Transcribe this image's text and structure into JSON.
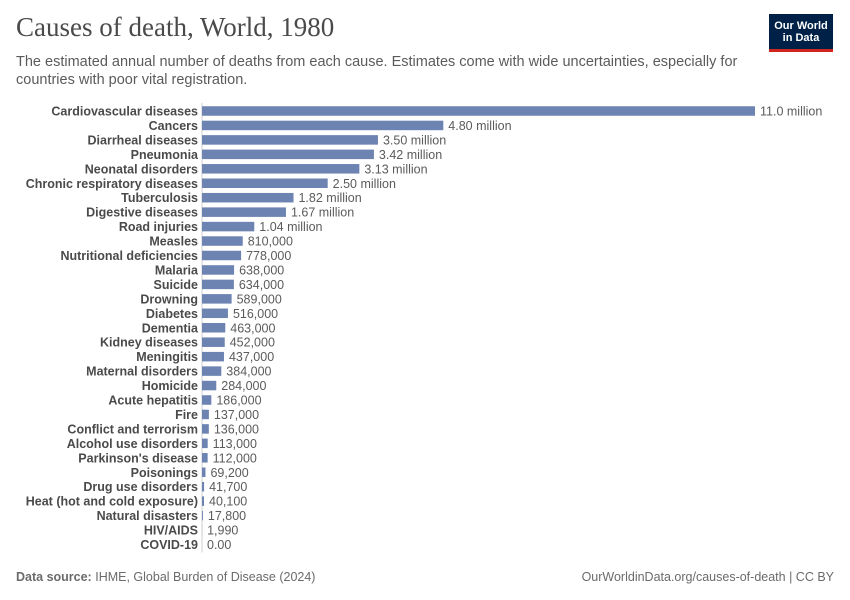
{
  "header": {
    "title": "Causes of death, World, 1980",
    "subtitle": "The estimated annual number of deaths from each cause. Estimates come with wide uncertainties, especially for countries with poor vital registration."
  },
  "logo": {
    "line1": "Our World",
    "line2": "in Data",
    "bg_color": "#002147",
    "accent_color": "#ce261e"
  },
  "footer": {
    "source_label": "Data source:",
    "source_text": "IHME, Global Burden of Disease (2024)",
    "url_text": "OurWorldinData.org/causes-of-death | CC BY"
  },
  "chart_data": {
    "type": "bar",
    "orientation": "horizontal",
    "bar_color": "#6d83b1",
    "categories": [
      "Cardiovascular diseases",
      "Cancers",
      "Diarrheal diseases",
      "Pneumonia",
      "Neonatal disorders",
      "Chronic respiratory diseases",
      "Tuberculosis",
      "Digestive diseases",
      "Road injuries",
      "Measles",
      "Nutritional deficiencies",
      "Malaria",
      "Suicide",
      "Drowning",
      "Diabetes",
      "Dementia",
      "Kidney diseases",
      "Meningitis",
      "Maternal disorders",
      "Homicide",
      "Acute hepatitis",
      "Fire",
      "Conflict and terrorism",
      "Alcohol use disorders",
      "Parkinson's disease",
      "Poisonings",
      "Drug use disorders",
      "Heat (hot and cold exposure)",
      "Natural disasters",
      "HIV/AIDS",
      "COVID-19"
    ],
    "values": [
      11000000,
      4800000,
      3500000,
      3420000,
      3130000,
      2500000,
      1820000,
      1670000,
      1040000,
      810000,
      778000,
      638000,
      634000,
      589000,
      516000,
      463000,
      452000,
      437000,
      384000,
      284000,
      186000,
      137000,
      136000,
      113000,
      112000,
      69200,
      41700,
      40100,
      17800,
      1990,
      0
    ],
    "value_labels": [
      "11.0 million",
      "4.80 million",
      "3.50 million",
      "3.42 million",
      "3.13 million",
      "2.50 million",
      "1.82 million",
      "1.67 million",
      "1.04 million",
      "810,000",
      "778,000",
      "638,000",
      "634,000",
      "589,000",
      "516,000",
      "463,000",
      "452,000",
      "437,000",
      "384,000",
      "284,000",
      "186,000",
      "137,000",
      "136,000",
      "113,000",
      "112,000",
      "69,200",
      "41,700",
      "40,100",
      "17,800",
      "1,990",
      "0.00"
    ],
    "xlim": [
      0,
      11000000
    ]
  }
}
